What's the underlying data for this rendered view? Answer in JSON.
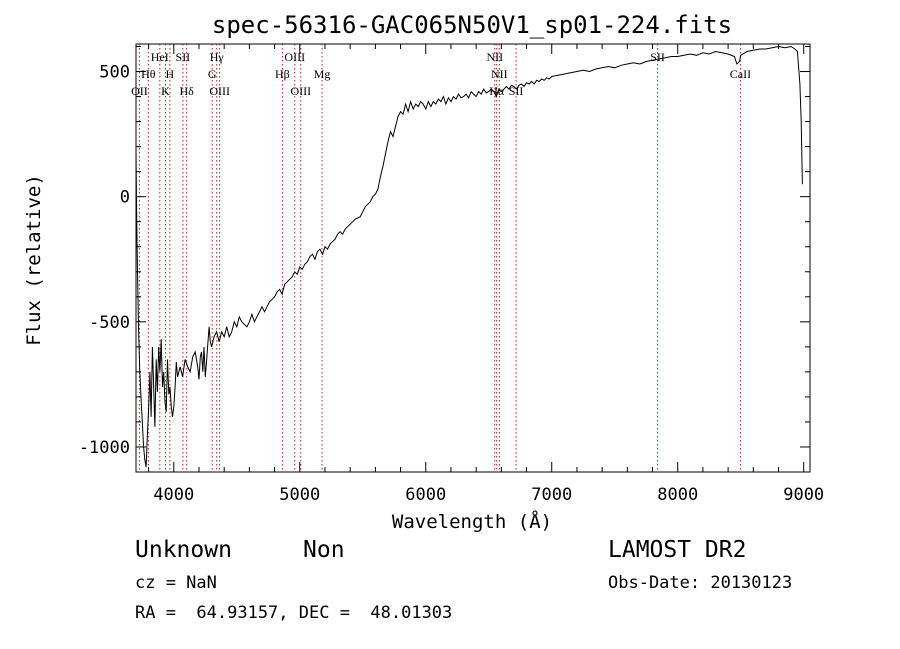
{
  "chart_data": {
    "type": "line",
    "title": "spec-56316-GAC065N50V1_sp01-224.fits",
    "xlabel": "Wavelength (Å)",
    "ylabel": "Flux (relative)",
    "xlim": [
      3700,
      9050
    ],
    "ylim": [
      -1100,
      610
    ],
    "xticks": [
      4000,
      5000,
      6000,
      7000,
      8000,
      9000
    ],
    "yticks": [
      -1000,
      -500,
      0,
      500
    ],
    "grid": false,
    "colors": {
      "spectrum": "#000000",
      "lines": "#b22222"
    },
    "series": [
      {
        "values": [
          [
            3700,
            180
          ],
          [
            3705,
            -50
          ],
          [
            3712,
            -300
          ],
          [
            3720,
            -520
          ],
          [
            3730,
            -700
          ],
          [
            3740,
            -800
          ],
          [
            3750,
            -900
          ],
          [
            3760,
            -1000
          ],
          [
            3770,
            -1050
          ],
          [
            3780,
            -1080
          ],
          [
            3790,
            -960
          ],
          [
            3800,
            -850
          ],
          [
            3810,
            -700
          ],
          [
            3820,
            -880
          ],
          [
            3830,
            -600
          ],
          [
            3840,
            -750
          ],
          [
            3850,
            -920
          ],
          [
            3860,
            -650
          ],
          [
            3870,
            -780
          ],
          [
            3880,
            -600
          ],
          [
            3890,
            -700
          ],
          [
            3900,
            -570
          ],
          [
            3910,
            -760
          ],
          [
            3920,
            -700
          ],
          [
            3930,
            -820
          ],
          [
            3940,
            -860
          ],
          [
            3950,
            -650
          ],
          [
            3960,
            -790
          ],
          [
            3970,
            -760
          ],
          [
            3980,
            -840
          ],
          [
            3990,
            -880
          ],
          [
            4000,
            -840
          ],
          [
            4010,
            -760
          ],
          [
            4020,
            -660
          ],
          [
            4030,
            -720
          ],
          [
            4050,
            -680
          ],
          [
            4070,
            -720
          ],
          [
            4090,
            -650
          ],
          [
            4110,
            -680
          ],
          [
            4130,
            -700
          ],
          [
            4150,
            -640
          ],
          [
            4170,
            -620
          ],
          [
            4190,
            -680
          ],
          [
            4200,
            -730
          ],
          [
            4210,
            -640
          ],
          [
            4220,
            -620
          ],
          [
            4230,
            -700
          ],
          [
            4240,
            -600
          ],
          [
            4250,
            -720
          ],
          [
            4260,
            -660
          ],
          [
            4280,
            -520
          ],
          [
            4290,
            -580
          ],
          [
            4300,
            -600
          ],
          [
            4320,
            -560
          ],
          [
            4340,
            -540
          ],
          [
            4360,
            -580
          ],
          [
            4380,
            -540
          ],
          [
            4400,
            -560
          ],
          [
            4420,
            -520
          ],
          [
            4440,
            -560
          ],
          [
            4460,
            -540
          ],
          [
            4480,
            -500
          ],
          [
            4500,
            -520
          ],
          [
            4520,
            -480
          ],
          [
            4540,
            -500
          ],
          [
            4560,
            -510
          ],
          [
            4580,
            -520
          ],
          [
            4600,
            -500
          ],
          [
            4620,
            -470
          ],
          [
            4640,
            -500
          ],
          [
            4660,
            -480
          ],
          [
            4680,
            -460
          ],
          [
            4700,
            -440
          ],
          [
            4720,
            -460
          ],
          [
            4740,
            -440
          ],
          [
            4760,
            -420
          ],
          [
            4780,
            -410
          ],
          [
            4800,
            -400
          ],
          [
            4820,
            -380
          ],
          [
            4840,
            -370
          ],
          [
            4860,
            -390
          ],
          [
            4880,
            -350
          ],
          [
            4900,
            -340
          ],
          [
            4920,
            -330
          ],
          [
            4940,
            -320
          ],
          [
            4960,
            -300
          ],
          [
            4980,
            -310
          ],
          [
            5000,
            -280
          ],
          [
            5020,
            -290
          ],
          [
            5040,
            -270
          ],
          [
            5060,
            -260
          ],
          [
            5080,
            -240
          ],
          [
            5100,
            -230
          ],
          [
            5120,
            -250
          ],
          [
            5140,
            -220
          ],
          [
            5160,
            -210
          ],
          [
            5180,
            -230
          ],
          [
            5200,
            -200
          ],
          [
            5220,
            -210
          ],
          [
            5240,
            -190
          ],
          [
            5260,
            -180
          ],
          [
            5280,
            -170
          ],
          [
            5300,
            -150
          ],
          [
            5320,
            -140
          ],
          [
            5340,
            -150
          ],
          [
            5360,
            -130
          ],
          [
            5380,
            -120
          ],
          [
            5400,
            -110
          ],
          [
            5420,
            -100
          ],
          [
            5440,
            -90
          ],
          [
            5460,
            -85
          ],
          [
            5480,
            -80
          ],
          [
            5500,
            -60
          ],
          [
            5520,
            -40
          ],
          [
            5540,
            -30
          ],
          [
            5560,
            -20
          ],
          [
            5580,
            0
          ],
          [
            5600,
            10
          ],
          [
            5620,
            30
          ],
          [
            5640,
            80
          ],
          [
            5660,
            120
          ],
          [
            5680,
            170
          ],
          [
            5700,
            220
          ],
          [
            5720,
            260
          ],
          [
            5740,
            240
          ],
          [
            5760,
            280
          ],
          [
            5780,
            320
          ],
          [
            5800,
            340
          ],
          [
            5820,
            330
          ],
          [
            5840,
            370
          ],
          [
            5860,
            340
          ],
          [
            5880,
            380
          ],
          [
            5900,
            350
          ],
          [
            5920,
            370
          ],
          [
            5940,
            360
          ],
          [
            5960,
            380
          ],
          [
            5980,
            370
          ],
          [
            6000,
            350
          ],
          [
            6020,
            380
          ],
          [
            6040,
            360
          ],
          [
            6060,
            380
          ],
          [
            6080,
            370
          ],
          [
            6100,
            390
          ],
          [
            6120,
            380
          ],
          [
            6140,
            400
          ],
          [
            6160,
            370
          ],
          [
            6180,
            395
          ],
          [
            6200,
            380
          ],
          [
            6220,
            400
          ],
          [
            6240,
            390
          ],
          [
            6260,
            410
          ],
          [
            6280,
            395
          ],
          [
            6300,
            400
          ],
          [
            6320,
            410
          ],
          [
            6340,
            395
          ],
          [
            6360,
            420
          ],
          [
            6380,
            410
          ],
          [
            6400,
            400
          ],
          [
            6420,
            420
          ],
          [
            6440,
            410
          ],
          [
            6460,
            430
          ],
          [
            6480,
            415
          ],
          [
            6500,
            420
          ],
          [
            6520,
            430
          ],
          [
            6540,
            420
          ],
          [
            6560,
            400
          ],
          [
            6580,
            430
          ],
          [
            6600,
            420
          ],
          [
            6620,
            430
          ],
          [
            6640,
            440
          ],
          [
            6660,
            430
          ],
          [
            6680,
            445
          ],
          [
            6700,
            440
          ],
          [
            6720,
            430
          ],
          [
            6740,
            445
          ],
          [
            6760,
            450
          ],
          [
            6780,
            440
          ],
          [
            6800,
            455
          ],
          [
            6820,
            450
          ],
          [
            6840,
            460
          ],
          [
            6860,
            450
          ],
          [
            6880,
            465
          ],
          [
            6900,
            460
          ],
          [
            6920,
            470
          ],
          [
            6940,
            465
          ],
          [
            6960,
            475
          ],
          [
            6980,
            470
          ],
          [
            7000,
            480
          ],
          [
            7050,
            485
          ],
          [
            7100,
            490
          ],
          [
            7150,
            495
          ],
          [
            7200,
            500
          ],
          [
            7250,
            505
          ],
          [
            7300,
            500
          ],
          [
            7350,
            510
          ],
          [
            7400,
            515
          ],
          [
            7450,
            520
          ],
          [
            7500,
            515
          ],
          [
            7550,
            525
          ],
          [
            7600,
            530
          ],
          [
            7650,
            535
          ],
          [
            7700,
            530
          ],
          [
            7750,
            540
          ],
          [
            7800,
            545
          ],
          [
            7850,
            550
          ],
          [
            7900,
            555
          ],
          [
            7950,
            560
          ],
          [
            8000,
            560
          ],
          [
            8050,
            565
          ],
          [
            8100,
            570
          ],
          [
            8150,
            565
          ],
          [
            8200,
            575
          ],
          [
            8250,
            570
          ],
          [
            8300,
            580
          ],
          [
            8350,
            575
          ],
          [
            8400,
            570
          ],
          [
            8450,
            560
          ],
          [
            8470,
            530
          ],
          [
            8490,
            540
          ],
          [
            8500,
            565
          ],
          [
            8550,
            580
          ],
          [
            8600,
            585
          ],
          [
            8650,
            590
          ],
          [
            8700,
            590
          ],
          [
            8750,
            595
          ],
          [
            8800,
            600
          ],
          [
            8850,
            595
          ],
          [
            8900,
            600
          ],
          [
            8930,
            590
          ],
          [
            8950,
            580
          ],
          [
            8970,
            450
          ],
          [
            8980,
            300
          ],
          [
            8990,
            50
          ]
        ]
      }
    ],
    "line_markers": [
      {
        "label": "OII",
        "wl": 3727,
        "row": 3
      },
      {
        "label": "Hθ",
        "wl": 3798,
        "row": 2
      },
      {
        "label": "HeI",
        "wl": 3889,
        "row": 1
      },
      {
        "label": "K",
        "wl": 3934,
        "row": 3
      },
      {
        "label": "H",
        "wl": 3969,
        "row": 2
      },
      {
        "label": "SII",
        "wl": 4072,
        "row": 1
      },
      {
        "label": "Hδ",
        "wl": 4102,
        "row": 3
      },
      {
        "label": "Hγ",
        "wl": 4341,
        "row": 1
      },
      {
        "label": "G",
        "wl": 4305,
        "row": 2
      },
      {
        "label": "OIII",
        "wl": 4364,
        "row": 3
      },
      {
        "label": "Hβ",
        "wl": 4862,
        "row": 2
      },
      {
        "label": "OIII",
        "wl": 4960,
        "row": 1
      },
      {
        "label": "OIII",
        "wl": 5008,
        "row": 3
      },
      {
        "label": "Mg",
        "wl": 5177,
        "row": 2
      },
      {
        "label": "NII",
        "wl": 6548,
        "row": 1
      },
      {
        "label": "NII",
        "wl": 6584,
        "row": 2
      },
      {
        "label": "Hα",
        "wl": 6563,
        "row": 3
      },
      {
        "label": "SII",
        "wl": 6717,
        "row": 3
      },
      {
        "label": "SII",
        "wl": 7840,
        "row": 1
      },
      {
        "label": "CaII",
        "wl": 8498,
        "row": 2
      }
    ]
  },
  "info": {
    "class": "Unknown",
    "subclass": "Non",
    "cz": "cz = NaN",
    "coords": "RA =  64.93157, DEC =  48.01303",
    "survey": "LAMOST DR2",
    "obs_date": "Obs-Date: 20130123"
  }
}
